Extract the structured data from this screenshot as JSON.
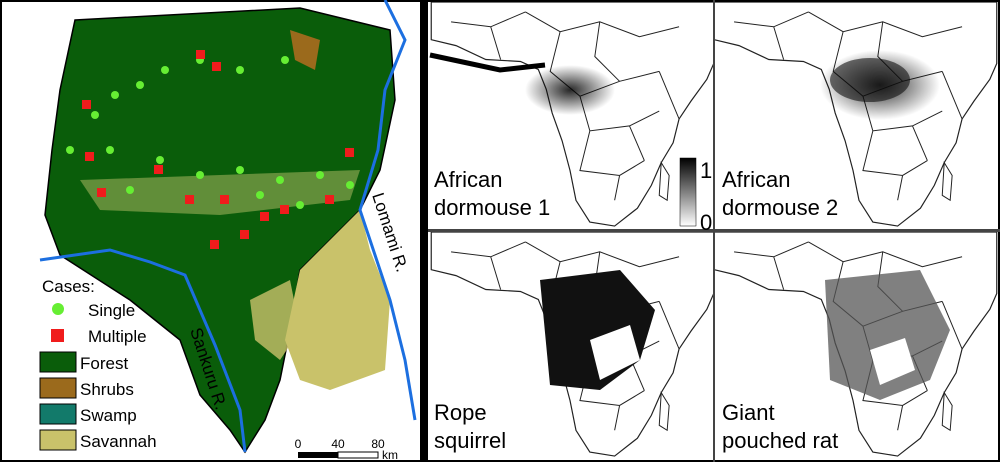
{
  "left_map": {
    "legend": {
      "title": "Cases:",
      "items": [
        "Single",
        "Multiple",
        "Forest",
        "Shrubs",
        "Swamp",
        "Savannah"
      ]
    },
    "rivers": [
      "Sankuru R.",
      "Lomami R."
    ],
    "scale_bar": {
      "ticks": [
        0,
        40,
        80
      ],
      "unit": "km"
    }
  },
  "right_maps": {
    "panels": [
      [
        "African",
        "dormouse 1"
      ],
      [
        "African",
        "dormouse 2"
      ],
      [
        "Rope",
        "squirrel"
      ],
      [
        "Giant",
        "pouched rat"
      ]
    ],
    "colorbar": {
      "max": 1,
      "min": 0
    }
  }
}
